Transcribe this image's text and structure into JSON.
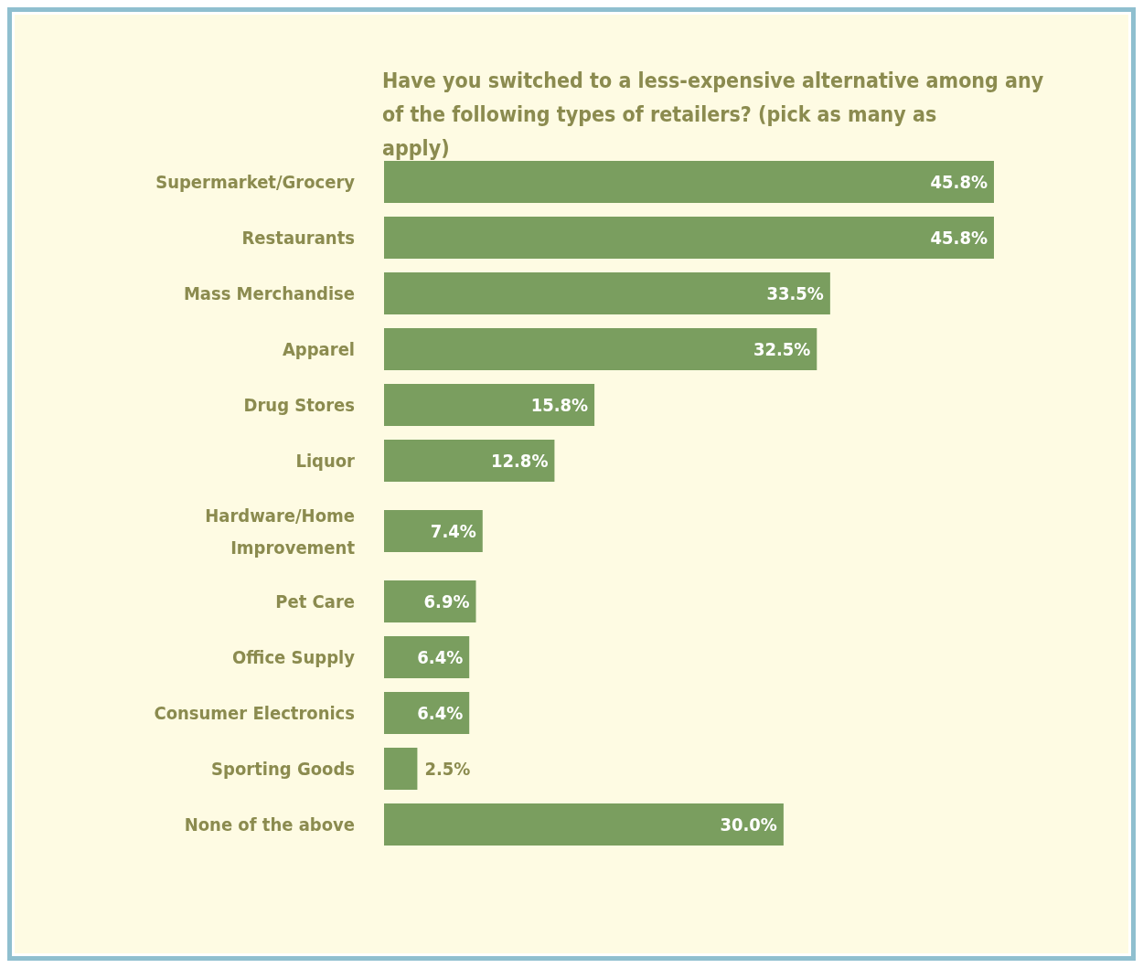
{
  "chart_data": {
    "type": "bar",
    "orientation": "horizontal",
    "title": "Have you switched to a less-expensive alternative among any of the following types of retailers? (pick as many as apply)",
    "categories": [
      "Supermarket/Grocery",
      "Restaurants",
      "Mass Merchandise",
      "Apparel",
      "Drug Stores",
      "Liquor",
      "Hardware/Home Improvement",
      "Pet Care",
      "Office Supply",
      "Consumer Electronics",
      "Sporting Goods",
      "None of the above"
    ],
    "values": [
      45.8,
      45.8,
      33.5,
      32.5,
      15.8,
      12.8,
      7.4,
      6.9,
      6.4,
      6.4,
      2.5,
      30.0
    ],
    "value_labels": [
      "45.8%",
      "45.8%",
      "33.5%",
      "32.5%",
      "15.8%",
      "12.8%",
      "7.4%",
      "6.9%",
      "6.4%",
      "6.4%",
      "2.5%",
      "30.0%"
    ],
    "color": "#7a9e5f"
  }
}
